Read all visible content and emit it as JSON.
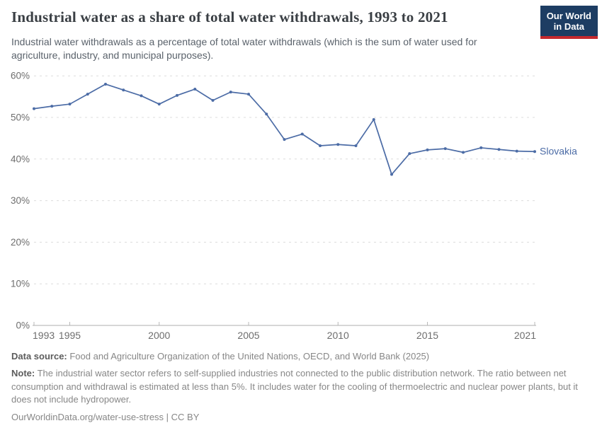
{
  "header": {
    "title": "Industrial water as a share of total water withdrawals, 1993 to 2021",
    "subtitle": "Industrial water withdrawals as a percentage of total water withdrawals (which is the sum of water used for agriculture, industry, and municipal purposes).",
    "logo": {
      "line1": "Our World",
      "line2": "in Data",
      "bg_color": "#1d3d63",
      "accent_color": "#c5292e"
    }
  },
  "chart_data": {
    "type": "line",
    "title": "Industrial water as a share of total water withdrawals, 1993 to 2021",
    "x": [
      1993,
      1994,
      1995,
      1996,
      1997,
      1998,
      1999,
      2000,
      2001,
      2002,
      2003,
      2004,
      2005,
      2006,
      2007,
      2008,
      2009,
      2010,
      2011,
      2012,
      2013,
      2014,
      2015,
      2016,
      2017,
      2018,
      2019,
      2020,
      2021
    ],
    "series": [
      {
        "name": "Slovakia",
        "color": "#4c6ca6",
        "values": [
          52.1,
          52.7,
          53.2,
          55.6,
          58.0,
          56.6,
          55.2,
          53.2,
          55.3,
          56.8,
          54.1,
          56.1,
          55.6,
          50.8,
          44.7,
          46.0,
          43.2,
          43.5,
          43.2,
          49.5,
          36.3,
          41.3,
          42.2,
          42.5,
          41.6,
          42.7,
          42.3,
          41.9,
          41.8
        ]
      }
    ],
    "xlim": [
      1993,
      2021
    ],
    "ylim": [
      0,
      60
    ],
    "x_ticks": [
      1993,
      1995,
      2000,
      2005,
      2010,
      2015,
      2021
    ],
    "y_ticks": [
      0,
      10,
      20,
      30,
      40,
      50,
      60
    ],
    "y_tick_suffix": "%",
    "grid": "horizontal-dashed",
    "legend_position": "end-of-line-label",
    "colors": {
      "grid": "#dcdcdc",
      "axis": "#c8c8c8",
      "tick": "#b8b8b8",
      "tick_label": "#6e6e6e"
    }
  },
  "footer": {
    "data_source_label": "Data source:",
    "data_source_text": " Food and Agriculture Organization of the United Nations, OECD, and World Bank (2025)",
    "note_label": "Note:",
    "note_text": " The industrial water sector refers to self-supplied industries not connected to the public distribution network. The ratio between net consumption and withdrawal is estimated at less than 5%. It includes water for the cooling of thermoelectric and nuclear power plants, but it does not include hydropower.",
    "citation": "OurWorldinData.org/water-use-stress | CC BY"
  }
}
